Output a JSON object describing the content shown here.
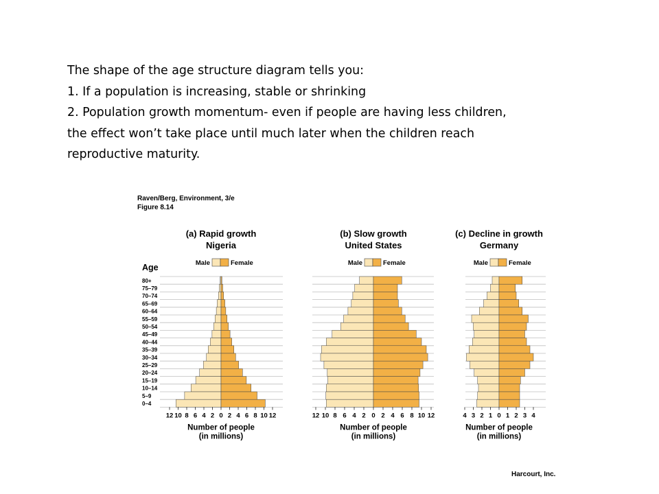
{
  "slide": {
    "lines": [
      "The shape of the age structure diagram tells you:",
      "1. If a population is increasing, stable or shrinking",
      "2. Population growth momentum- even if people are having less children,",
      "the effect won’t take place until much later when the children reach",
      "reproductive maturity."
    ]
  },
  "figure": {
    "source": "Raven/Berg, Environment, 3/e",
    "number": "Figure 8.14",
    "credit": "Harcourt, Inc.",
    "age_axis_label": "Age",
    "colors": {
      "male": "#fbe6b6",
      "female": "#f2b046",
      "grid": "#bfbfbf",
      "outline": "#444444"
    }
  },
  "chart_data": [
    {
      "type": "bar",
      "subtype": "population-pyramid",
      "title": "(a) Rapid growth",
      "subtitle": "Nigeria",
      "categories": [
        "80+",
        "75–79",
        "70–74",
        "65–69",
        "60–64",
        "55–59",
        "50–54",
        "45–49",
        "40–44",
        "35–39",
        "30–34",
        "25–29",
        "20–24",
        "15–19",
        "10–14",
        "5–9",
        "0–4"
      ],
      "series": [
        {
          "name": "Male",
          "values": [
            0.2,
            0.4,
            0.6,
            0.9,
            1.1,
            1.4,
            1.7,
            2.1,
            2.5,
            3.0,
            3.4,
            4.1,
            5.0,
            5.9,
            7.0,
            8.5,
            10.5
          ]
        },
        {
          "name": "Female",
          "values": [
            0.2,
            0.4,
            0.6,
            0.9,
            1.1,
            1.4,
            1.7,
            2.1,
            2.5,
            3.0,
            3.4,
            4.1,
            5.0,
            5.9,
            7.0,
            8.4,
            10.3
          ]
        }
      ],
      "xticks": [
        "12",
        "10",
        "8",
        "6",
        "4",
        "2",
        "0",
        "2",
        "4",
        "6",
        "8",
        "10",
        "12"
      ],
      "xlim": [
        -12,
        12
      ],
      "xlabel": "Number of people\n(in millions)",
      "ylabel": "Age"
    },
    {
      "type": "bar",
      "subtype": "population-pyramid",
      "title": "(b) Slow growth",
      "subtitle": "United States",
      "categories": [
        "80+",
        "75–79",
        "70–74",
        "65–69",
        "60–64",
        "55–59",
        "50–54",
        "45–49",
        "40–44",
        "35–39",
        "30–34",
        "25–29",
        "20–24",
        "15–19",
        "10–14",
        "5–9",
        "0–4"
      ],
      "series": [
        {
          "name": "Male",
          "values": [
            2.9,
            3.9,
            4.3,
            4.6,
            5.3,
            6.2,
            6.8,
            8.6,
            9.8,
            10.8,
            11.0,
            10.3,
            9.6,
            9.5,
            9.8,
            9.9,
            9.8
          ]
        },
        {
          "name": "Female",
          "values": [
            5.9,
            5.0,
            5.0,
            5.2,
            5.9,
            6.6,
            7.3,
            8.9,
            10.0,
            11.0,
            11.3,
            10.3,
            9.7,
            9.3,
            9.4,
            9.5,
            9.5
          ]
        }
      ],
      "xticks": [
        "12",
        "10",
        "8",
        "6",
        "4",
        "2",
        "0",
        "2",
        "4",
        "6",
        "8",
        "10",
        "12"
      ],
      "xlim": [
        -12,
        12
      ],
      "xlabel": "Number of people\n(in millions)",
      "ylabel": ""
    },
    {
      "type": "bar",
      "subtype": "population-pyramid",
      "title": "(c) Decline in growth",
      "subtitle": "Germany",
      "categories": [
        "80+",
        "75–79",
        "70–74",
        "65–69",
        "60–64",
        "55–59",
        "50–54",
        "45–49",
        "40–44",
        "35–39",
        "30–34",
        "25–29",
        "20–24",
        "15–19",
        "10–14",
        "5–9",
        "0–4"
      ],
      "series": [
        {
          "name": "Male",
          "values": [
            0.8,
            1.0,
            1.4,
            1.8,
            2.3,
            3.2,
            3.0,
            2.9,
            3.1,
            3.5,
            3.8,
            3.4,
            2.9,
            2.5,
            2.4,
            2.5,
            2.6
          ]
        },
        {
          "name": "Female",
          "values": [
            2.7,
            1.9,
            2.0,
            2.3,
            2.7,
            3.4,
            3.2,
            3.0,
            3.2,
            3.6,
            4.0,
            3.6,
            3.0,
            2.5,
            2.4,
            2.4,
            2.4
          ]
        }
      ],
      "xticks": [
        "4",
        "3",
        "2",
        "1",
        "0",
        "1",
        "2",
        "3",
        "4"
      ],
      "xlim": [
        -4,
        4
      ],
      "xlabel": "Number of people\n(in millions)",
      "ylabel": ""
    }
  ]
}
